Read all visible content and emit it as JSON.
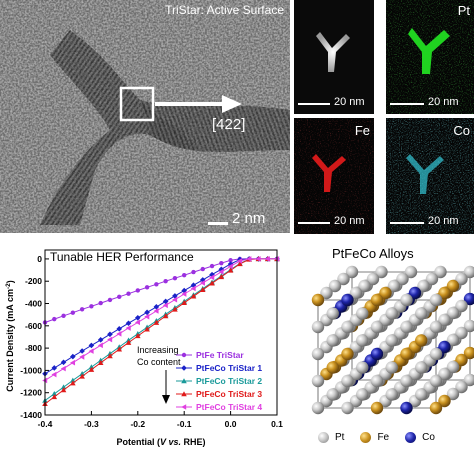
{
  "tem": {
    "title": "TriStar: Active Surface",
    "direction": "[422]",
    "scalebar": "2 nm"
  },
  "eds": {
    "panels": [
      {
        "label": "",
        "scalebar": "20 nm",
        "color": "#e6e6e6"
      },
      {
        "label": "Pt",
        "scalebar": "20 nm",
        "color": "#22dd22"
      },
      {
        "label": "Fe",
        "scalebar": "20 nm",
        "color": "#dd1a1a"
      },
      {
        "label": "Co",
        "scalebar": "20 nm",
        "color": "#33c6d6"
      }
    ]
  },
  "chart_data": {
    "type": "line",
    "title": "Tunable HER Performance",
    "xlabel_prefix": "Potential (",
    "xlabel_italic": "V vs.",
    "xlabel_suffix": " RHE)",
    "ylabel": "Current Density (mA cm",
    "ylabel_sup": "-2",
    "ylabel_end": ")",
    "xlim": [
      -0.4,
      0.1
    ],
    "ylim": [
      -1400,
      80
    ],
    "xticks": [
      "-0.4",
      "-0.3",
      "-0.2",
      "-0.1",
      "0.0",
      "0.1"
    ],
    "yticks": [
      "0",
      "-200",
      "-400",
      "-600",
      "-800",
      "-1000",
      "-1200",
      "-1400"
    ],
    "annotation": [
      "Increasing",
      "Co content"
    ],
    "legend_position": "bottom-right",
    "series": [
      {
        "name": "PtFe TriStar",
        "color": "#9b30e0",
        "marker": "circle",
        "x": [
          -0.4,
          -0.38,
          -0.36,
          -0.34,
          -0.32,
          -0.3,
          -0.28,
          -0.26,
          -0.24,
          -0.22,
          -0.2,
          -0.18,
          -0.16,
          -0.14,
          -0.12,
          -0.1,
          -0.08,
          -0.06,
          -0.04,
          -0.02,
          0.0,
          0.02,
          0.04,
          0.06,
          0.08,
          0.1
        ],
        "y": [
          -570,
          -540,
          -510,
          -482,
          -452,
          -425,
          -396,
          -368,
          -340,
          -312,
          -283,
          -255,
          -228,
          -200,
          -173,
          -146,
          -118,
          -91,
          -64,
          -38,
          -12,
          0,
          0,
          0,
          0,
          0
        ]
      },
      {
        "name": "PtFeCo TriStar 1",
        "color": "#1a22c8",
        "marker": "diamond",
        "x": [
          -0.4,
          -0.38,
          -0.36,
          -0.34,
          -0.32,
          -0.3,
          -0.28,
          -0.26,
          -0.24,
          -0.22,
          -0.2,
          -0.18,
          -0.16,
          -0.14,
          -0.12,
          -0.1,
          -0.08,
          -0.06,
          -0.04,
          -0.02,
          0.0,
          0.02,
          0.04,
          0.06,
          0.08,
          0.1
        ],
        "y": [
          -1030,
          -978,
          -927,
          -876,
          -826,
          -776,
          -726,
          -676,
          -627,
          -577,
          -528,
          -479,
          -430,
          -381,
          -332,
          -284,
          -236,
          -188,
          -141,
          -93,
          -46,
          -5,
          0,
          0,
          0,
          0
        ]
      },
      {
        "name": "PtFeCo TriStar 2",
        "color": "#1a9a9a",
        "marker": "triangle",
        "x": [
          -0.4,
          -0.38,
          -0.36,
          -0.34,
          -0.32,
          -0.3,
          -0.28,
          -0.26,
          -0.24,
          -0.22,
          -0.2,
          -0.18,
          -0.16,
          -0.14,
          -0.12,
          -0.1,
          -0.08,
          -0.06,
          -0.04,
          -0.02,
          0.0,
          0.02,
          0.04,
          0.06,
          0.08,
          0.1
        ],
        "y": [
          -1270,
          -1210,
          -1150,
          -1090,
          -1030,
          -970,
          -910,
          -850,
          -790,
          -730,
          -672,
          -613,
          -555,
          -497,
          -439,
          -381,
          -324,
          -267,
          -210,
          -153,
          -96,
          -40,
          -3,
          0,
          0,
          0
        ]
      },
      {
        "name": "PtFeCo TriStar 3",
        "color": "#e01a1a",
        "marker": "triangle",
        "x": [
          -0.4,
          -0.38,
          -0.36,
          -0.34,
          -0.32,
          -0.3,
          -0.28,
          -0.26,
          -0.24,
          -0.22,
          -0.2,
          -0.18,
          -0.16,
          -0.14,
          -0.12,
          -0.1,
          -0.08,
          -0.06,
          -0.04,
          -0.02,
          0.0,
          0.02,
          0.04,
          0.06,
          0.08,
          0.1
        ],
        "y": [
          -1300,
          -1238,
          -1176,
          -1115,
          -1054,
          -993,
          -932,
          -871,
          -811,
          -751,
          -691,
          -631,
          -572,
          -512,
          -453,
          -394,
          -335,
          -277,
          -219,
          -161,
          -103,
          -45,
          -4,
          0,
          0,
          0
        ]
      },
      {
        "name": "PtFeCo TriStar 4",
        "color": "#e040e0",
        "marker": "triangle-left",
        "x": [
          -0.4,
          -0.38,
          -0.36,
          -0.34,
          -0.32,
          -0.3,
          -0.28,
          -0.26,
          -0.24,
          -0.22,
          -0.2,
          -0.18,
          -0.16,
          -0.14,
          -0.12,
          -0.1,
          -0.08,
          -0.06,
          -0.04,
          -0.02,
          0.0,
          0.02,
          0.04,
          0.06,
          0.08,
          0.1
        ],
        "y": [
          -1090,
          -1037,
          -984,
          -931,
          -879,
          -827,
          -775,
          -723,
          -672,
          -620,
          -569,
          -518,
          -467,
          -416,
          -366,
          -315,
          -265,
          -215,
          -166,
          -116,
          -67,
          -18,
          0,
          0,
          0,
          0
        ]
      }
    ]
  },
  "crystal": {
    "title": "PtFeCo Alloys",
    "legend": [
      {
        "label": "Pt",
        "color": "#c8c8c8"
      },
      {
        "label": "Fe",
        "color": "#c8901e"
      },
      {
        "label": "Co",
        "color": "#1e24a8"
      }
    ]
  }
}
